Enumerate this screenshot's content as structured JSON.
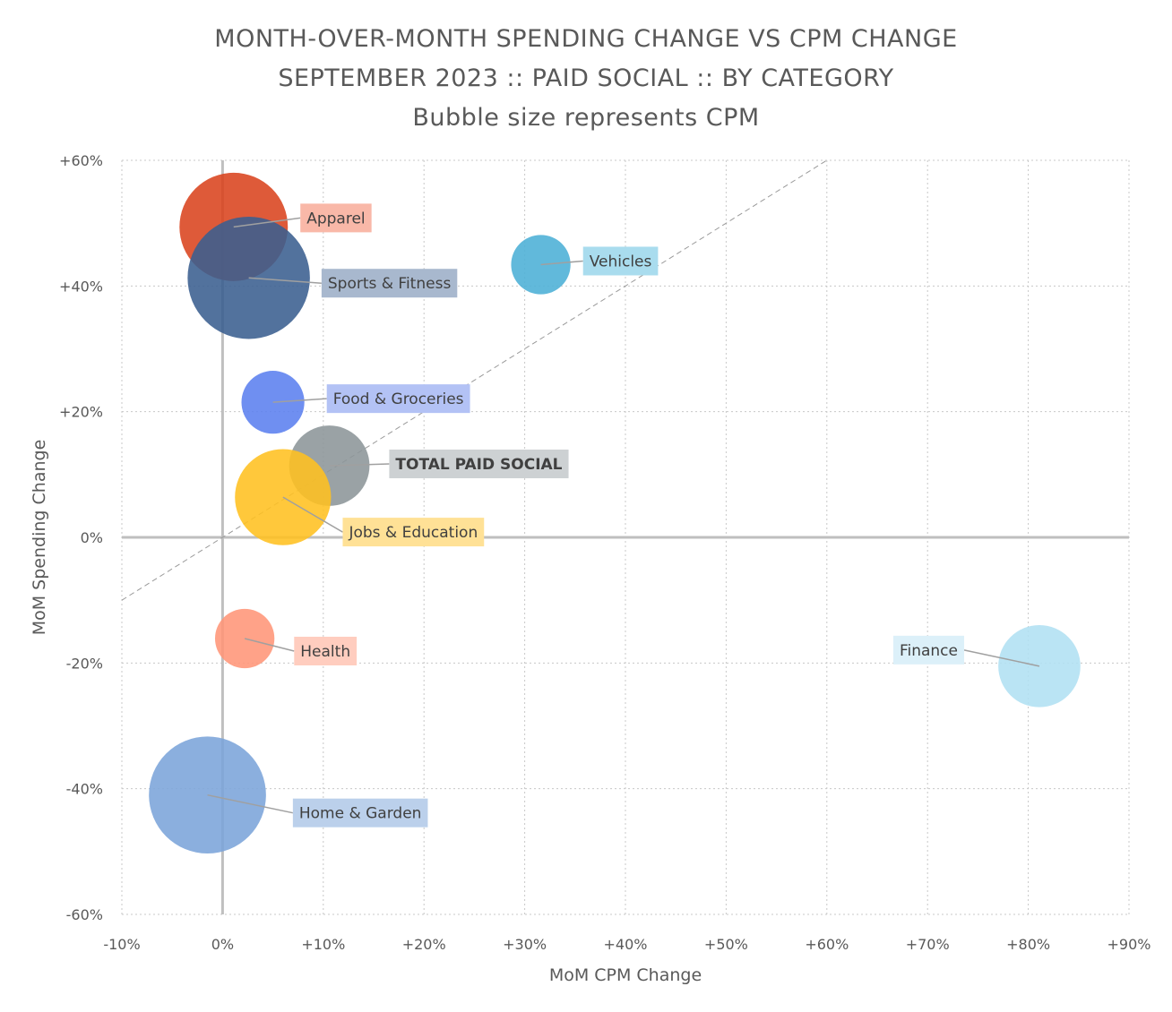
{
  "chart_data": {
    "type": "bubble",
    "title": "MONTH-OVER-MONTH SPENDING CHANGE VS CPM CHANGE",
    "subtitle": "SEPTEMBER 2023 :: PAID SOCIAL :: BY CATEGORY",
    "subtitle2": "Bubble size represents CPM",
    "xlabel": "MoM CPM Change",
    "ylabel": "MoM Spending Change",
    "xlim": [
      -10,
      90
    ],
    "ylim": [
      -60,
      60
    ],
    "x_ticks": [
      "-10%",
      "0%",
      "+10%",
      "+20%",
      "+30%",
      "+40%",
      "+50%",
      "+60%",
      "+70%",
      "+80%",
      "+90%"
    ],
    "y_ticks": [
      "+60%",
      "+40%",
      "+20%",
      "0%",
      "-20%",
      "-40%",
      "-60%"
    ],
    "grid": true,
    "reference_line": {
      "from": [
        -10,
        -10
      ],
      "to": [
        60,
        60
      ]
    },
    "series": [
      {
        "name": "Apparel",
        "x": 1.1,
        "y": 49.4,
        "size": 6.2,
        "color": "#D9431E",
        "label_bg": "#F9B8A8",
        "bold": false
      },
      {
        "name": "Sports & Fitness",
        "x": 2.6,
        "y": 41.3,
        "size": 7.0,
        "color": "#3A5F8F",
        "label_bg": "#A8B8CE",
        "bold": false
      },
      {
        "name": "Vehicles",
        "x": 31.6,
        "y": 43.4,
        "size": 3.4,
        "color": "#4BAFD6",
        "label_bg": "#A9DCEE",
        "bold": false
      },
      {
        "name": "Food & Groceries",
        "x": 5.0,
        "y": 21.5,
        "size": 3.6,
        "color": "#5B7FEF",
        "label_bg": "#B3C2F5",
        "bold": false
      },
      {
        "name": "TOTAL PAID SOCIAL",
        "x": 10.6,
        "y": 11.4,
        "size": 4.6,
        "color": "#8C9598",
        "label_bg": "#CDD1D3",
        "bold": true
      },
      {
        "name": "Jobs & Education",
        "x": 6.0,
        "y": 6.4,
        "size": 5.5,
        "color": "#FFC020",
        "label_bg": "#FFE196",
        "bold": false
      },
      {
        "name": "Health",
        "x": 2.2,
        "y": -16.1,
        "size": 3.4,
        "color": "#FF9577",
        "label_bg": "#FFCDBF",
        "bold": false
      },
      {
        "name": "Home & Garden",
        "x": -1.5,
        "y": -41.0,
        "size": 6.7,
        "color": "#7BA4D9",
        "label_bg": "#BBD0EB",
        "bold": false
      },
      {
        "name": "Finance",
        "x": 81.1,
        "y": -20.5,
        "size": 4.7,
        "color": "#B0E0F2",
        "label_bg": "#DCF0F9",
        "bold": false
      }
    ]
  }
}
